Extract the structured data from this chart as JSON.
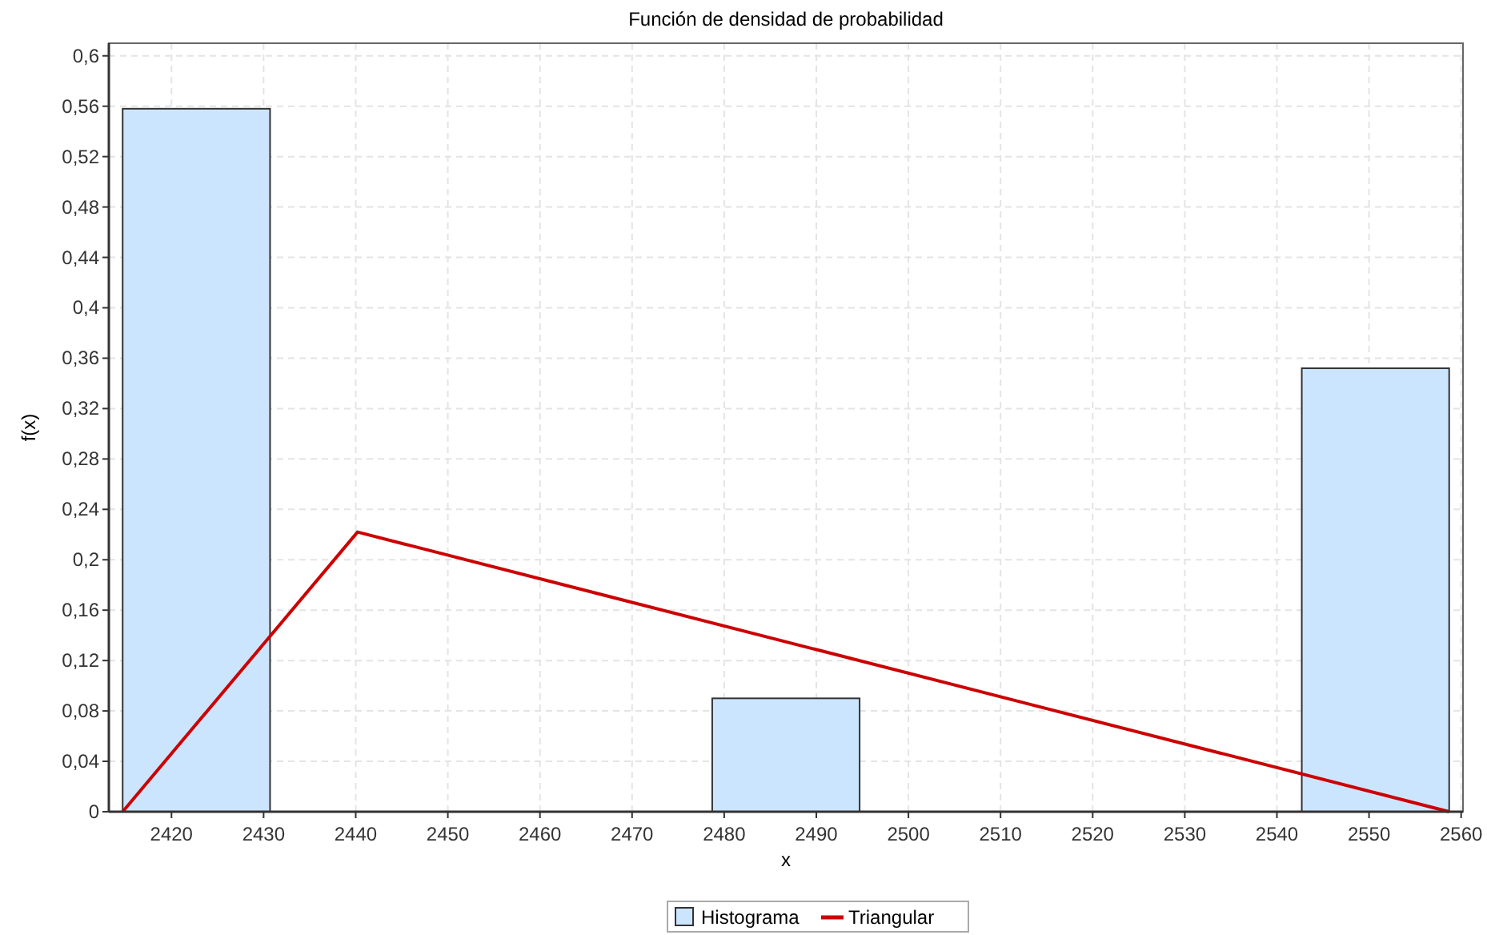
{
  "chart_data": {
    "type": "histogram",
    "title": "Función de densidad de probabilidad",
    "xlabel": "x",
    "ylabel": "f(x)",
    "bins": [
      2414.7,
      2430.7,
      2446.7,
      2462.7,
      2478.7,
      2494.7,
      2510.7,
      2526.7,
      2542.7,
      2558.7
    ],
    "series": [
      {
        "name": "Histograma",
        "color": "#cce5ff",
        "values": [
          0.558,
          0,
          0,
          0,
          0.09,
          0,
          0,
          0,
          0.352
        ]
      },
      {
        "name": "Triangular",
        "type": "line",
        "color": "#cc0000",
        "x": [
          2414.7,
          2440.2,
          2558.7
        ],
        "values": [
          0,
          0.222,
          0
        ]
      }
    ],
    "xlim": [
      2413.2,
      2560.2
    ],
    "ylim": [
      0,
      0.61
    ],
    "xticks": [
      2420,
      2430,
      2440,
      2450,
      2460,
      2470,
      2480,
      2490,
      2500,
      2510,
      2520,
      2530,
      2540,
      2550,
      2560
    ],
    "yticks": [
      0,
      {
        "value": 0.04,
        "label": "0,04"
      },
      {
        "value": 0.08,
        "label": "0,08"
      },
      {
        "value": 0.12,
        "label": "0,12"
      },
      {
        "value": 0.16,
        "label": "0,16"
      },
      {
        "value": 0.2,
        "label": "0,2"
      },
      {
        "value": 0.24,
        "label": "0,24"
      },
      {
        "value": 0.28,
        "label": "0,28"
      },
      {
        "value": 0.32,
        "label": "0,32"
      },
      {
        "value": 0.36,
        "label": "0,36"
      },
      {
        "value": 0.4,
        "label": "0,4"
      },
      {
        "value": 0.44,
        "label": "0,44"
      },
      {
        "value": 0.48,
        "label": "0,48"
      },
      {
        "value": 0.52,
        "label": "0,52"
      },
      {
        "value": 0.56,
        "label": "0,56"
      },
      {
        "value": 0.6,
        "label": "0,6"
      }
    ],
    "grid": true,
    "legend": "bottom",
    "line_style": "solid",
    "marker": "none"
  }
}
